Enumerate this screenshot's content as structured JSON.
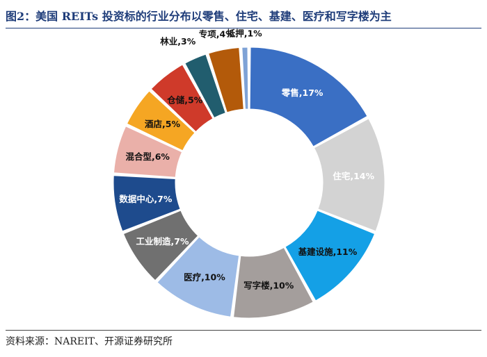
{
  "title": "图2：美国 REITs 投资标的行业分布以零售、住宅、基建、医疗和写字楼为主",
  "source": "资料来源：NAREIT、开源证券研究所",
  "chart_data": {
    "type": "pie",
    "variant": "donut",
    "title": "图2：美国 REITs 投资标的行业分布以零售、住宅、基建、医疗和写字楼为主",
    "unit": "%",
    "slices": [
      {
        "name": "零售",
        "value": 17,
        "label": "零售,17%",
        "color": "#3a6fc4",
        "label_color": "#ffffff"
      },
      {
        "name": "住宅",
        "value": 14,
        "label": "住宅,14%",
        "color": "#d3d3d3",
        "label_color": "#ffffff"
      },
      {
        "name": "基建设施",
        "value": 11,
        "label": "基建设施,11%",
        "color": "#14a0e6",
        "label_color": "#111111"
      },
      {
        "name": "写字楼",
        "value": 10,
        "label": "写字楼,10%",
        "color": "#a49e9c",
        "label_color": "#111111"
      },
      {
        "name": "医疗",
        "value": 10,
        "label": "医疗,10%",
        "color": "#9dbbe6",
        "label_color": "#111111"
      },
      {
        "name": "工业制造",
        "value": 7,
        "label": "工业制造,7%",
        "color": "#707070",
        "label_color": "#ffffff"
      },
      {
        "name": "数据中心",
        "value": 7,
        "label": "数据中心,7%",
        "color": "#1e4b8d",
        "label_color": "#ffffff"
      },
      {
        "name": "混合型",
        "value": 6,
        "label": "混合型,6%",
        "color": "#eab0a9",
        "label_color": "#111111"
      },
      {
        "name": "酒店",
        "value": 5,
        "label": "酒店,5%",
        "color": "#f5a623",
        "label_color": "#111111"
      },
      {
        "name": "仓储",
        "value": 5,
        "label": "仓储,5%",
        "color": "#cf3a2a",
        "label_color": "#111111"
      },
      {
        "name": "林业",
        "value": 3,
        "label": "林业,3%",
        "color": "#215d6e",
        "label_color": "#111111"
      },
      {
        "name": "专项",
        "value": 4,
        "label": "专项,4%",
        "color": "#b35a0a",
        "label_color": "#111111"
      },
      {
        "name": "抵押",
        "value": 1,
        "label": "抵押,1%",
        "color": "#7ea2d6",
        "label_color": "#111111"
      }
    ]
  }
}
